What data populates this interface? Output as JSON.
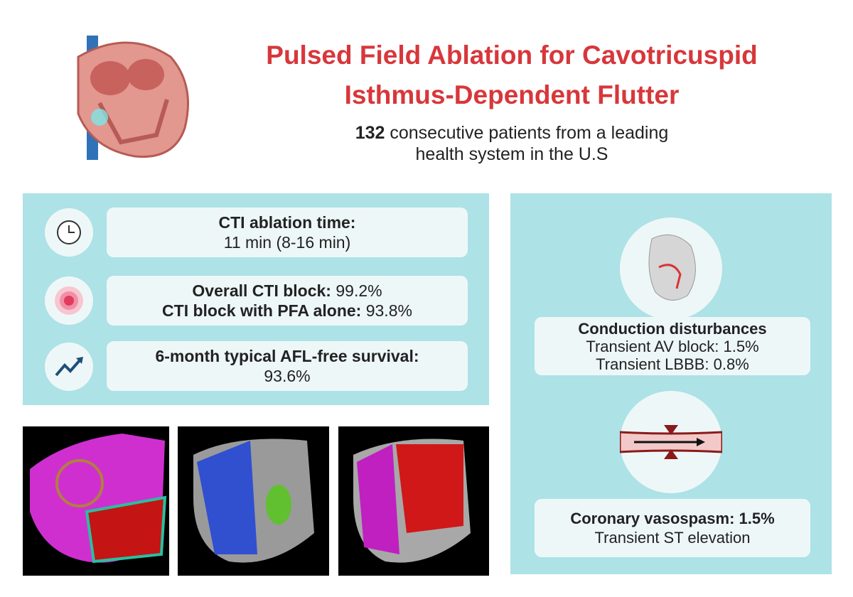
{
  "header": {
    "title": "Pulsed Field Ablation for Cavotricuspid Isthmus-Dependent Flutter",
    "subtitle": {
      "count": "132",
      "text": "consecutive patients from a leading health system in the U.S"
    }
  },
  "outcomes": [
    {
      "lines": [
        {
          "label": "CTI ablation time:"
        },
        {
          "value": "11 min (8-16 min)"
        }
      ]
    },
    {
      "lines": [
        {
          "label": "Overall CTI block:",
          "value": "99.2%"
        },
        {
          "label": "CTI block with PFA alone:",
          "value": "93.8%"
        }
      ]
    },
    {
      "lines": [
        {
          "label": "6-month typical AFL-free survival:"
        },
        {
          "value": "93.6%"
        }
      ]
    }
  ],
  "safety": [
    {
      "title": "Conduction disturbances",
      "lines": [
        "Transient AV block: 1.5%",
        "Transient LBBB: 0.8%"
      ]
    },
    {
      "title": "Coronary vasospasm: 1.5%",
      "lines": [
        "Transient ST elevation"
      ]
    }
  ]
}
